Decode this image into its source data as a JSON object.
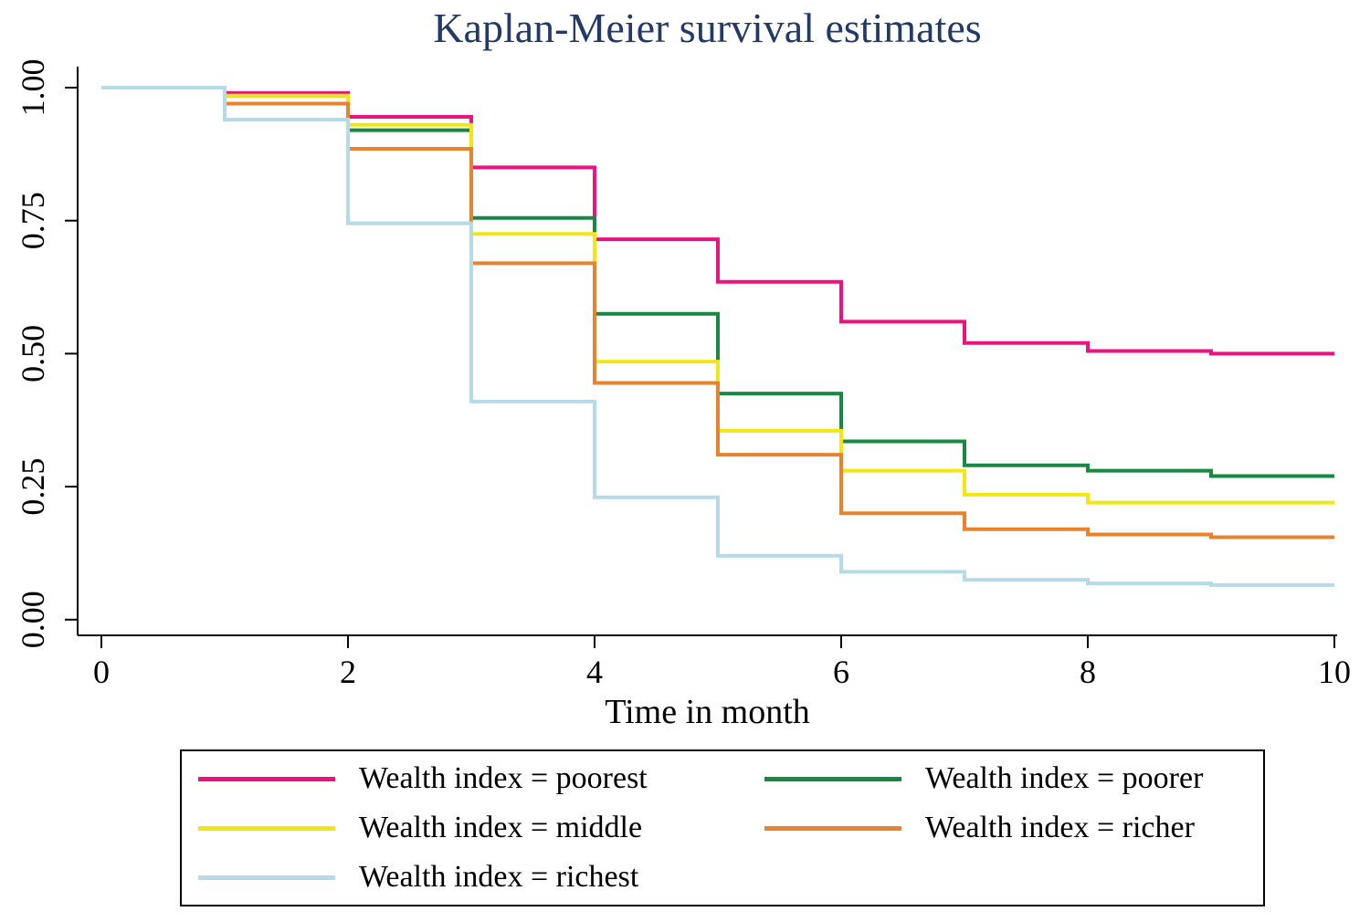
{
  "chart_data": {
    "type": "line",
    "variant": "kaplan-meier-step",
    "title": "Kaplan-Meier survival estimates",
    "title_color": "#233a66",
    "xlabel": "Time in month",
    "ylabel": "",
    "xlim": [
      0,
      10
    ],
    "ylim": [
      0,
      1
    ],
    "xticks": [
      0,
      2,
      4,
      6,
      8,
      10
    ],
    "ytick_labels": [
      "0.00",
      "0.25",
      "0.50",
      "0.75",
      "1.00"
    ],
    "grid": false,
    "legend_position": "bottom",
    "axis_color": "#000000",
    "step_times": [
      0,
      1,
      2,
      3,
      4,
      5,
      6,
      7,
      8,
      9
    ],
    "x_end": 10,
    "series": [
      {
        "name": "Wealth index = poorest",
        "color": "#ed137f",
        "values": [
          1.0,
          0.99,
          0.945,
          0.85,
          0.715,
          0.635,
          0.56,
          0.52,
          0.505,
          0.5
        ]
      },
      {
        "name": "Wealth index = poorer",
        "color": "#188843",
        "values": [
          1.0,
          0.985,
          0.92,
          0.755,
          0.575,
          0.425,
          0.335,
          0.29,
          0.28,
          0.27
        ]
      },
      {
        "name": "Wealth index = middle",
        "color": "#f0e713",
        "values": [
          1.0,
          0.985,
          0.93,
          0.725,
          0.485,
          0.355,
          0.28,
          0.235,
          0.22,
          0.22
        ]
      },
      {
        "name": "Wealth index = richer",
        "color": "#e8822c",
        "values": [
          1.0,
          0.97,
          0.885,
          0.67,
          0.445,
          0.31,
          0.2,
          0.17,
          0.16,
          0.155
        ]
      },
      {
        "name": "Wealth index = richest",
        "color": "#b5dbe8",
        "values": [
          1.0,
          0.94,
          0.745,
          0.41,
          0.23,
          0.12,
          0.09,
          0.075,
          0.068,
          0.065
        ]
      }
    ]
  }
}
